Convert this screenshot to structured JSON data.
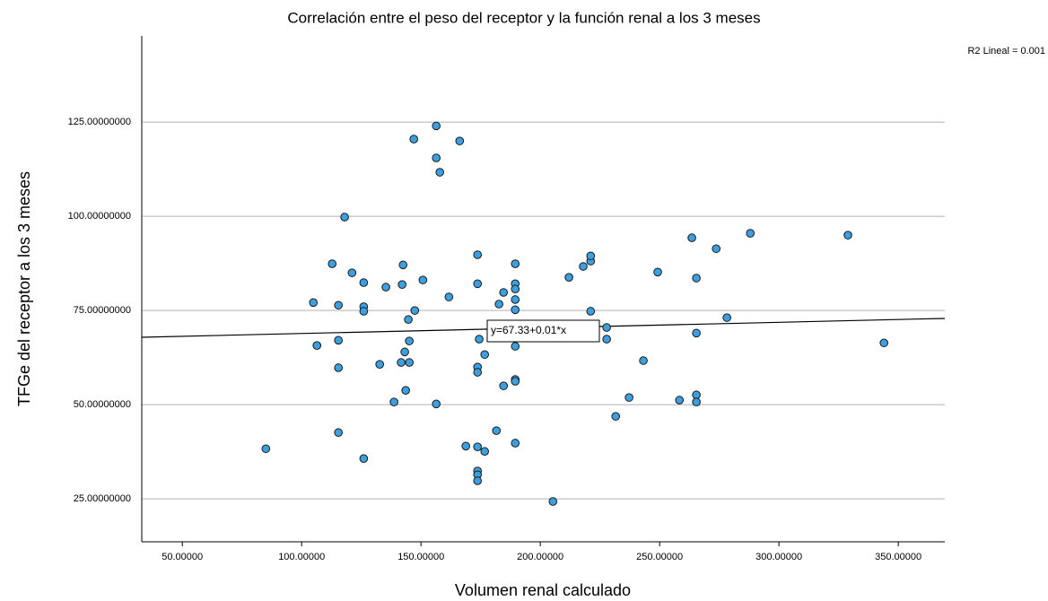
{
  "chart_data": {
    "type": "scatter",
    "title": "Correlación entre el peso del receptor y la función renal a los 3 meses",
    "x_label": "Volumen renal calculado",
    "y_label": "TFGe del receptor a los 3 meses",
    "annotation": "R2 Lineal = 0.001",
    "fit_label": "y=67.33+0.01*x",
    "fit_line": {
      "x": [
        33,
        369.5
      ],
      "y": [
        67.9,
        72.9
      ]
    },
    "color": "#3c9fe0",
    "grid": true,
    "xlim": [
      33,
      369.5
    ],
    "ylim": [
      13.6,
      147.9
    ],
    "xticks": [
      {
        "value": 50,
        "label": "50.00000"
      },
      {
        "value": 100,
        "label": "100.00000"
      },
      {
        "value": 150,
        "label": "150.00000"
      },
      {
        "value": 200,
        "label": "200.00000"
      },
      {
        "value": 250,
        "label": "250.00000"
      },
      {
        "value": 300,
        "label": "300.00000"
      },
      {
        "value": 350,
        "label": "350.00000"
      }
    ],
    "yticks": [
      {
        "value": 25,
        "label": "25.00000000"
      },
      {
        "value": 50,
        "label": "50.00000000"
      },
      {
        "value": 75,
        "label": "75.00000000"
      },
      {
        "value": 100,
        "label": "100.00000000"
      },
      {
        "value": 125,
        "label": "125.00000000"
      }
    ],
    "x": [
      85.0,
      104.9,
      106.4,
      112.8,
      115.4,
      115.4,
      115.4,
      115.4,
      118.0,
      121.1,
      126.0,
      126.0,
      126.0,
      126.0,
      132.7,
      135.3,
      138.7,
      141.7,
      142.5,
      142.1,
      143.2,
      143.6,
      144.7,
      145.1,
      145.1,
      147.0,
      147.4,
      150.8,
      156.4,
      156.4,
      156.4,
      157.9,
      161.7,
      166.2,
      168.8,
      173.7,
      173.7,
      174.4,
      173.7,
      173.7,
      173.7,
      173.7,
      173.7,
      173.7,
      176.7,
      176.7,
      181.6,
      182.7,
      184.6,
      184.6,
      189.5,
      189.5,
      189.5,
      189.5,
      189.5,
      189.5,
      189.5,
      189.5,
      189.5,
      205.3,
      212.0,
      218.0,
      221.1,
      221.1,
      221.1,
      227.8,
      227.8,
      231.6,
      237.2,
      243.2,
      249.2,
      258.3,
      263.5,
      265.4,
      265.4,
      265.4,
      265.4,
      273.7,
      278.2,
      288.0,
      328.9,
      344.0
    ],
    "values": [
      38.3,
      77.1,
      65.7,
      87.4,
      76.4,
      67.1,
      59.8,
      42.6,
      99.8,
      85.0,
      82.4,
      76.0,
      74.8,
      35.7,
      60.7,
      81.2,
      50.7,
      61.2,
      87.1,
      81.9,
      64.0,
      53.8,
      72.6,
      66.9,
      61.2,
      120.5,
      75.0,
      83.1,
      124.0,
      115.5,
      50.2,
      111.7,
      78.6,
      120.0,
      39.0,
      89.8,
      82.1,
      67.4,
      60.0,
      58.6,
      38.8,
      32.4,
      31.4,
      29.8,
      63.3,
      37.6,
      43.1,
      76.7,
      79.8,
      55.0,
      87.4,
      82.1,
      80.7,
      77.9,
      75.2,
      65.5,
      56.7,
      56.2,
      39.8,
      24.3,
      83.8,
      86.7,
      88.1,
      89.5,
      74.8,
      70.5,
      67.4,
      46.9,
      51.9,
      61.7,
      85.2,
      51.2,
      94.3,
      83.6,
      69.0,
      52.6,
      50.7,
      91.4,
      73.1,
      95.5,
      95.0,
      66.4
    ]
  }
}
